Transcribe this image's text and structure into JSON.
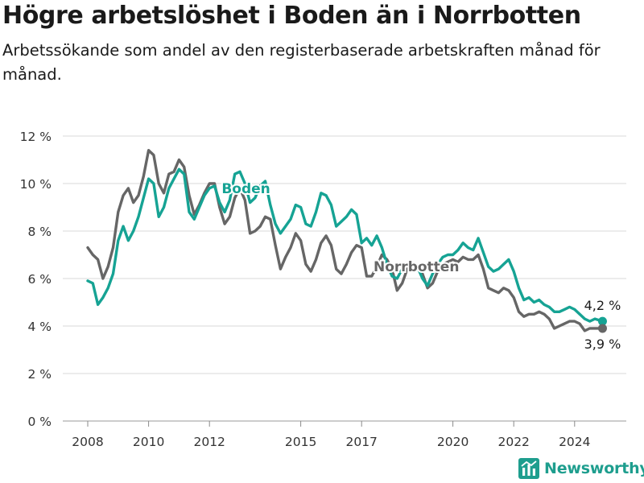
{
  "title": "Högre arbetslöshet i Boden än i Norrbotten",
  "subtitle": "Arbetssökande som andel av den registerbaserade arbetskraften månad för månad.",
  "brand": {
    "name": "Newsworthy",
    "color": "#1e9e8e"
  },
  "chart_data": {
    "type": "line",
    "title": "Högre arbetslöshet i Boden än i Norrbotten",
    "subtitle": "Arbetssökande som andel av den registerbaserade arbetskraften månad för månad.",
    "xlabel": "",
    "ylabel": "",
    "x_range": [
      2008.0,
      2024.917
    ],
    "ylim": [
      0,
      12
    ],
    "y_ticks": [
      0,
      2,
      4,
      6,
      8,
      10,
      12
    ],
    "y_tick_labels": [
      "0 %",
      "2 %",
      "4 %",
      "6 %",
      "8 %",
      "10 %",
      "12 %"
    ],
    "x_ticks": [
      2008,
      2010,
      2012,
      2015,
      2017,
      2020,
      2022,
      2024
    ],
    "x_tick_labels": [
      "2008",
      "2010",
      "2012",
      "2015",
      "2017",
      "2020",
      "2022",
      "2024"
    ],
    "grid": "horizontal",
    "legend": "inline labels",
    "series": [
      {
        "name": "Boden",
        "color": "#16a394",
        "label_position": {
          "x": 2013.2,
          "y": 9.6
        },
        "end_label": "4,2 %",
        "points": [
          [
            2008.0,
            5.9
          ],
          [
            2008.167,
            5.8
          ],
          [
            2008.333,
            4.9
          ],
          [
            2008.5,
            5.2
          ],
          [
            2008.667,
            5.6
          ],
          [
            2008.833,
            6.2
          ],
          [
            2009.0,
            7.6
          ],
          [
            2009.167,
            8.2
          ],
          [
            2009.333,
            7.6
          ],
          [
            2009.5,
            8.0
          ],
          [
            2009.667,
            8.6
          ],
          [
            2009.833,
            9.4
          ],
          [
            2010.0,
            10.2
          ],
          [
            2010.167,
            10.0
          ],
          [
            2010.333,
            8.6
          ],
          [
            2010.5,
            9.0
          ],
          [
            2010.667,
            9.8
          ],
          [
            2010.833,
            10.2
          ],
          [
            2011.0,
            10.6
          ],
          [
            2011.167,
            10.4
          ],
          [
            2011.333,
            8.8
          ],
          [
            2011.5,
            8.5
          ],
          [
            2011.667,
            9.0
          ],
          [
            2011.833,
            9.5
          ],
          [
            2012.0,
            9.8
          ],
          [
            2012.167,
            9.9
          ],
          [
            2012.333,
            9.2
          ],
          [
            2012.5,
            8.8
          ],
          [
            2012.667,
            9.3
          ],
          [
            2012.833,
            10.4
          ],
          [
            2013.0,
            10.5
          ],
          [
            2013.167,
            10.0
          ],
          [
            2013.333,
            9.2
          ],
          [
            2013.5,
            9.4
          ],
          [
            2013.667,
            9.9
          ],
          [
            2013.833,
            10.1
          ],
          [
            2014.0,
            9.1
          ],
          [
            2014.167,
            8.3
          ],
          [
            2014.333,
            7.9
          ],
          [
            2014.5,
            8.2
          ],
          [
            2014.667,
            8.5
          ],
          [
            2014.833,
            9.1
          ],
          [
            2015.0,
            9.0
          ],
          [
            2015.167,
            8.3
          ],
          [
            2015.333,
            8.2
          ],
          [
            2015.5,
            8.8
          ],
          [
            2015.667,
            9.6
          ],
          [
            2015.833,
            9.5
          ],
          [
            2016.0,
            9.1
          ],
          [
            2016.167,
            8.2
          ],
          [
            2016.333,
            8.4
          ],
          [
            2016.5,
            8.6
          ],
          [
            2016.667,
            8.9
          ],
          [
            2016.833,
            8.7
          ],
          [
            2017.0,
            7.5
          ],
          [
            2017.167,
            7.7
          ],
          [
            2017.333,
            7.4
          ],
          [
            2017.5,
            7.8
          ],
          [
            2017.667,
            7.3
          ],
          [
            2017.833,
            6.6
          ],
          [
            2018.0,
            6.1
          ],
          [
            2018.167,
            6.0
          ],
          [
            2018.333,
            6.4
          ],
          [
            2018.5,
            6.6
          ],
          [
            2018.667,
            6.4
          ],
          [
            2018.833,
            6.5
          ],
          [
            2019.0,
            6.0
          ],
          [
            2019.167,
            5.7
          ],
          [
            2019.333,
            6.2
          ],
          [
            2019.5,
            6.6
          ],
          [
            2019.667,
            6.9
          ],
          [
            2019.833,
            7.0
          ],
          [
            2020.0,
            7.0
          ],
          [
            2020.167,
            7.2
          ],
          [
            2020.333,
            7.5
          ],
          [
            2020.5,
            7.3
          ],
          [
            2020.667,
            7.2
          ],
          [
            2020.833,
            7.7
          ],
          [
            2021.0,
            7.1
          ],
          [
            2021.167,
            6.5
          ],
          [
            2021.333,
            6.3
          ],
          [
            2021.5,
            6.4
          ],
          [
            2021.667,
            6.6
          ],
          [
            2021.833,
            6.8
          ],
          [
            2022.0,
            6.3
          ],
          [
            2022.167,
            5.6
          ],
          [
            2022.333,
            5.1
          ],
          [
            2022.5,
            5.2
          ],
          [
            2022.667,
            5.0
          ],
          [
            2022.833,
            5.1
          ],
          [
            2023.0,
            4.9
          ],
          [
            2023.167,
            4.8
          ],
          [
            2023.333,
            4.6
          ],
          [
            2023.5,
            4.6
          ],
          [
            2023.667,
            4.7
          ],
          [
            2023.833,
            4.8
          ],
          [
            2024.0,
            4.7
          ],
          [
            2024.167,
            4.5
          ],
          [
            2024.333,
            4.3
          ],
          [
            2024.5,
            4.2
          ],
          [
            2024.667,
            4.3
          ],
          [
            2024.917,
            4.2
          ]
        ]
      },
      {
        "name": "Norrbotten",
        "color": "#666666",
        "label_position": {
          "x": 2018.8,
          "y": 6.3
        },
        "end_label": "3,9 %",
        "points": [
          [
            2008.0,
            7.3
          ],
          [
            2008.167,
            7.0
          ],
          [
            2008.333,
            6.8
          ],
          [
            2008.5,
            6.0
          ],
          [
            2008.667,
            6.5
          ],
          [
            2008.833,
            7.3
          ],
          [
            2009.0,
            8.8
          ],
          [
            2009.167,
            9.5
          ],
          [
            2009.333,
            9.8
          ],
          [
            2009.5,
            9.2
          ],
          [
            2009.667,
            9.5
          ],
          [
            2009.833,
            10.3
          ],
          [
            2010.0,
            11.4
          ],
          [
            2010.167,
            11.2
          ],
          [
            2010.333,
            10.0
          ],
          [
            2010.5,
            9.6
          ],
          [
            2010.667,
            10.4
          ],
          [
            2010.833,
            10.5
          ],
          [
            2011.0,
            11.0
          ],
          [
            2011.167,
            10.7
          ],
          [
            2011.333,
            9.5
          ],
          [
            2011.5,
            8.7
          ],
          [
            2011.667,
            9.1
          ],
          [
            2011.833,
            9.6
          ],
          [
            2012.0,
            10.0
          ],
          [
            2012.167,
            10.0
          ],
          [
            2012.333,
            9.0
          ],
          [
            2012.5,
            8.3
          ],
          [
            2012.667,
            8.6
          ],
          [
            2012.833,
            9.4
          ],
          [
            2013.0,
            9.8
          ],
          [
            2013.167,
            9.3
          ],
          [
            2013.333,
            7.9
          ],
          [
            2013.5,
            8.0
          ],
          [
            2013.667,
            8.2
          ],
          [
            2013.833,
            8.6
          ],
          [
            2014.0,
            8.5
          ],
          [
            2014.167,
            7.4
          ],
          [
            2014.333,
            6.4
          ],
          [
            2014.5,
            6.9
          ],
          [
            2014.667,
            7.3
          ],
          [
            2014.833,
            7.9
          ],
          [
            2015.0,
            7.6
          ],
          [
            2015.167,
            6.6
          ],
          [
            2015.333,
            6.3
          ],
          [
            2015.5,
            6.8
          ],
          [
            2015.667,
            7.5
          ],
          [
            2015.833,
            7.8
          ],
          [
            2016.0,
            7.4
          ],
          [
            2016.167,
            6.4
          ],
          [
            2016.333,
            6.2
          ],
          [
            2016.5,
            6.6
          ],
          [
            2016.667,
            7.1
          ],
          [
            2016.833,
            7.4
          ],
          [
            2017.0,
            7.3
          ],
          [
            2017.167,
            6.1
          ],
          [
            2017.333,
            6.1
          ],
          [
            2017.5,
            6.5
          ],
          [
            2017.667,
            7.0
          ],
          [
            2017.833,
            6.8
          ],
          [
            2018.0,
            6.4
          ],
          [
            2018.167,
            5.5
          ],
          [
            2018.333,
            5.8
          ],
          [
            2018.5,
            6.4
          ],
          [
            2018.667,
            6.6
          ],
          [
            2018.833,
            6.4
          ],
          [
            2019.0,
            6.2
          ],
          [
            2019.167,
            5.6
          ],
          [
            2019.333,
            5.8
          ],
          [
            2019.5,
            6.3
          ],
          [
            2019.667,
            6.6
          ],
          [
            2019.833,
            6.7
          ],
          [
            2020.0,
            6.8
          ],
          [
            2020.167,
            6.7
          ],
          [
            2020.333,
            6.9
          ],
          [
            2020.5,
            6.8
          ],
          [
            2020.667,
            6.8
          ],
          [
            2020.833,
            7.0
          ],
          [
            2021.0,
            6.4
          ],
          [
            2021.167,
            5.6
          ],
          [
            2021.333,
            5.5
          ],
          [
            2021.5,
            5.4
          ],
          [
            2021.667,
            5.6
          ],
          [
            2021.833,
            5.5
          ],
          [
            2022.0,
            5.2
          ],
          [
            2022.167,
            4.6
          ],
          [
            2022.333,
            4.4
          ],
          [
            2022.5,
            4.5
          ],
          [
            2022.667,
            4.5
          ],
          [
            2022.833,
            4.6
          ],
          [
            2023.0,
            4.5
          ],
          [
            2023.167,
            4.3
          ],
          [
            2023.333,
            3.9
          ],
          [
            2023.5,
            4.0
          ],
          [
            2023.667,
            4.1
          ],
          [
            2023.833,
            4.2
          ],
          [
            2024.0,
            4.2
          ],
          [
            2024.167,
            4.1
          ],
          [
            2024.333,
            3.8
          ],
          [
            2024.5,
            3.9
          ],
          [
            2024.667,
            3.9
          ],
          [
            2024.917,
            3.9
          ]
        ]
      }
    ]
  }
}
